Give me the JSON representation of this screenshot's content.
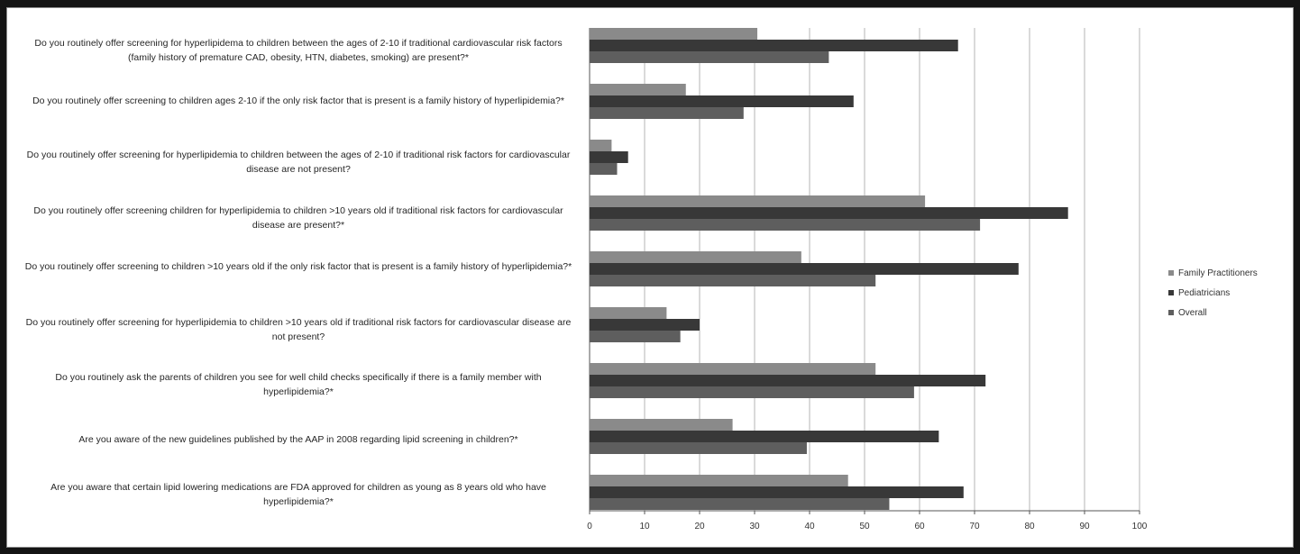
{
  "chart_data": {
    "type": "bar",
    "orientation": "horizontal",
    "categories": [
      "Do you routinely offer screening for hyperlipidema to children between the ages of 2-10 if traditional cardiovascular risk factors (family history of premature CAD, obesity, HTN, diabetes, smoking) are present?*",
      "Do you routinely offer screening to children ages 2-10 if the only risk factor that is present is a family history of hyperlipidemia?*",
      "Do you routinely offer screening for hyperlipidemia to children between the ages of 2-10 if traditional risk factors for cardiovascular disease are not present?",
      "Do you routinely offer screening children for hyperlipidemia to children >10 years old if traditional risk factors for cardiovascular disease are present?*",
      "Do you routinely offer screening to children >10 years old if the only risk factor that is present is a family history of hyperlipidemia?*",
      "Do you routinely offer screening for hyperlipidemia to children >10 years old if traditional risk factors for cardiovascular disease are not present?",
      "Do you routinely ask the parents of children you see for well child checks specifically if there is a family member with hyperlipidemia?*",
      "Are you aware of the new guidelines published by the AAP in 2008 regarding lipid screening in children?*",
      "Are you aware that certain lipid lowering medications are FDA approved for children as young as 8 years old who have hyperlipidemia?*"
    ],
    "series": [
      {
        "name": "Family Practitioners",
        "color": "#8a8a8a",
        "values": [
          30.5,
          17.5,
          4,
          61,
          38.5,
          14,
          52,
          26,
          47
        ]
      },
      {
        "name": "Pediatricians",
        "color": "#383838",
        "values": [
          67,
          48,
          7,
          87,
          78,
          20,
          72,
          63.5,
          68
        ]
      },
      {
        "name": "Overall",
        "color": "#5e5e5e",
        "values": [
          43.5,
          28,
          5,
          71,
          52,
          16.5,
          59,
          39.5,
          54.5
        ]
      }
    ],
    "xlim": [
      0,
      100
    ],
    "xticks": [
      "0",
      "10",
      "20",
      "30",
      "40",
      "50",
      "60",
      "70",
      "80",
      "90",
      "100"
    ],
    "grid": true,
    "legend_position": "right"
  }
}
